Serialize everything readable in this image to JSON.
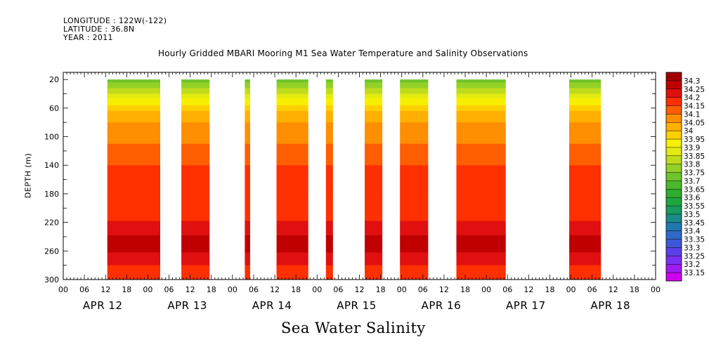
{
  "header": {
    "longitude": "LONGITUDE : 122W(-122)",
    "latitude": "LATITUDE : 36.8N",
    "year": "YEAR : 2011"
  },
  "chart_data": {
    "type": "heatmap",
    "title": "Hourly Gridded MBARI Mooring M1 Sea Water Temperature and Salinity Observations",
    "xlabel": "Sea Water Salinity",
    "ylabel": "DEPTH (m)",
    "x_unit": "hour since APR 12 00 UTC",
    "xlim": [
      0,
      168
    ],
    "ylim": [
      300,
      10
    ],
    "y_ticks": [
      20,
      60,
      100,
      140,
      180,
      220,
      260,
      300
    ],
    "x_hour_tick_labels": [
      "00",
      "06",
      "12",
      "18"
    ],
    "day_labels": [
      "APR 12",
      "APR 13",
      "APR 14",
      "APR 15",
      "APR 16",
      "APR 17",
      "APR 18"
    ],
    "data_segments": [
      [
        12.5,
        27.5
      ],
      [
        33.5,
        41.5
      ],
      [
        51.5,
        53
      ],
      [
        60.5,
        69.5
      ],
      [
        74.5,
        76.5
      ],
      [
        85.5,
        90.5
      ],
      [
        95.5,
        103.5
      ],
      [
        111.5,
        125.5
      ],
      [
        143.5,
        152.5
      ]
    ],
    "profile_depths": [
      20,
      35,
      50,
      65,
      80,
      95,
      110,
      125,
      140,
      160,
      180,
      200,
      215,
      230,
      245,
      250,
      258,
      270,
      285,
      300
    ],
    "profile_salinity": [
      33.72,
      33.82,
      33.92,
      34.0,
      34.05,
      34.08,
      34.1,
      34.13,
      34.15,
      34.15,
      34.15,
      34.16,
      34.19,
      34.23,
      34.27,
      34.3,
      34.27,
      34.22,
      34.19,
      34.17
    ],
    "colorbar": {
      "levels": [
        33.15,
        33.2,
        33.25,
        33.3,
        33.35,
        33.4,
        33.45,
        33.5,
        33.55,
        33.6,
        33.65,
        33.7,
        33.75,
        33.8,
        33.85,
        33.9,
        33.95,
        34,
        34.05,
        34.1,
        34.15,
        34.2,
        34.25,
        34.3
      ],
      "labels": [
        "33.15",
        "33.2",
        "33.25",
        "33.3",
        "33.35",
        "33.4",
        "33.45",
        "33.5",
        "33.55",
        "33.6",
        "33.65",
        "33.7",
        "33.75",
        "33.8",
        "33.85",
        "33.9",
        "33.95",
        "34",
        "34.05",
        "34.1",
        "34.15",
        "34.2",
        "34.25",
        "34.3"
      ],
      "colors": [
        "#cc00ee",
        "#9e1cf2",
        "#7a30f0",
        "#5a40e8",
        "#4058d8",
        "#3068c8",
        "#2078b0",
        "#1b8a88",
        "#189a60",
        "#1fa640",
        "#30ad30",
        "#4cb82c",
        "#6ec42a",
        "#94d028",
        "#bfdc1c",
        "#e2ea10",
        "#f6f000",
        "#ffd000",
        "#ffb000",
        "#ff8e00",
        "#ff5e00",
        "#ff3000",
        "#e01010",
        "#c00000",
        "#a00000"
      ]
    }
  }
}
